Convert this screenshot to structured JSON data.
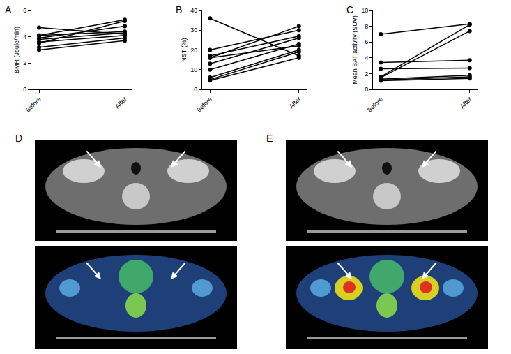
{
  "chart_data": [
    {
      "type": "line",
      "title": "A",
      "y_label": "BMR (Joule/min)",
      "categories": [
        "Before",
        "After"
      ],
      "ylim": [
        0,
        6
      ],
      "yticks": [
        0,
        2,
        4,
        6
      ],
      "grid": false,
      "series": [
        {
          "color": "#000000",
          "marker": "circle",
          "line_style": "solid",
          "values": [
            4.7,
            4.2
          ]
        },
        {
          "color": "#000000",
          "marker": "circle",
          "line_style": "solid",
          "values": [
            4.1,
            5.3
          ]
        },
        {
          "color": "#000000",
          "marker": "circle",
          "line_style": "solid",
          "values": [
            4.1,
            4.4
          ]
        },
        {
          "color": "#000000",
          "marker": "circle",
          "line_style": "solid",
          "values": [
            3.9,
            4.8
          ]
        },
        {
          "color": "#000000",
          "marker": "circle",
          "line_style": "solid",
          "values": [
            3.8,
            4.3
          ]
        },
        {
          "color": "#000000",
          "marker": "circle",
          "line_style": "solid",
          "values": [
            3.6,
            4.1
          ]
        },
        {
          "color": "#000000",
          "marker": "circle",
          "line_style": "solid",
          "values": [
            3.5,
            5.2
          ]
        },
        {
          "color": "#000000",
          "marker": "circle",
          "line_style": "solid",
          "values": [
            3.2,
            3.9
          ]
        },
        {
          "color": "#000000",
          "marker": "circle",
          "line_style": "solid",
          "values": [
            3.0,
            3.7
          ]
        }
      ]
    },
    {
      "type": "line",
      "title": "B",
      "y_label": "NST (%)",
      "categories": [
        "Before",
        "After"
      ],
      "ylim": [
        0,
        40
      ],
      "yticks": [
        0,
        10,
        20,
        30,
        40
      ],
      "grid": false,
      "series": [
        {
          "color": "#000000",
          "marker": "circle",
          "line_style": "solid",
          "values": [
            36,
            17
          ]
        },
        {
          "color": "#000000",
          "marker": "circle",
          "line_style": "solid",
          "values": [
            20,
            30
          ]
        },
        {
          "color": "#000000",
          "marker": "circle",
          "line_style": "solid",
          "values": [
            16,
            32
          ]
        },
        {
          "color": "#000000",
          "marker": "circle",
          "line_style": "solid",
          "values": [
            16,
            22
          ]
        },
        {
          "color": "#000000",
          "marker": "circle",
          "line_style": "solid",
          "values": [
            17,
            27
          ]
        },
        {
          "color": "#000000",
          "marker": "circle",
          "line_style": "solid",
          "values": [
            13,
            26
          ]
        },
        {
          "color": "#000000",
          "marker": "circle",
          "line_style": "solid",
          "values": [
            10,
            23
          ]
        },
        {
          "color": "#000000",
          "marker": "circle",
          "line_style": "solid",
          "values": [
            6,
            20
          ]
        },
        {
          "color": "#000000",
          "marker": "circle",
          "line_style": "solid",
          "values": [
            5,
            19
          ]
        },
        {
          "color": "#000000",
          "marker": "circle",
          "line_style": "solid",
          "values": [
            4.5,
            16
          ]
        }
      ]
    },
    {
      "type": "line",
      "title": "C",
      "y_label": "Mean BAT activity (SUV)",
      "categories": [
        "Before",
        "After"
      ],
      "ylim": [
        0,
        10
      ],
      "yticks": [
        0,
        2,
        4,
        6,
        8,
        10
      ],
      "grid": false,
      "series": [
        {
          "color": "#000000",
          "marker": "circle",
          "line_style": "solid",
          "values": [
            7.0,
            8.3
          ]
        },
        {
          "color": "#000000",
          "marker": "circle",
          "line_style": "solid",
          "values": [
            3.4,
            3.7
          ]
        },
        {
          "color": "#000000",
          "marker": "circle",
          "line_style": "solid",
          "values": [
            2.6,
            2.7
          ]
        },
        {
          "color": "#000000",
          "marker": "circle",
          "line_style": "solid",
          "values": [
            1.6,
            8.2
          ]
        },
        {
          "color": "#000000",
          "marker": "circle",
          "line_style": "solid",
          "values": [
            1.5,
            7.4
          ]
        },
        {
          "color": "#000000",
          "marker": "circle",
          "line_style": "solid",
          "values": [
            1.3,
            1.8
          ]
        },
        {
          "color": "#000000",
          "marker": "circle",
          "line_style": "solid",
          "values": [
            1.2,
            1.6
          ]
        },
        {
          "color": "#000000",
          "marker": "circle",
          "line_style": "solid",
          "values": [
            1.1,
            1.4
          ]
        }
      ]
    }
  ],
  "image_panels": [
    {
      "label": "D"
    },
    {
      "label": "E"
    }
  ]
}
